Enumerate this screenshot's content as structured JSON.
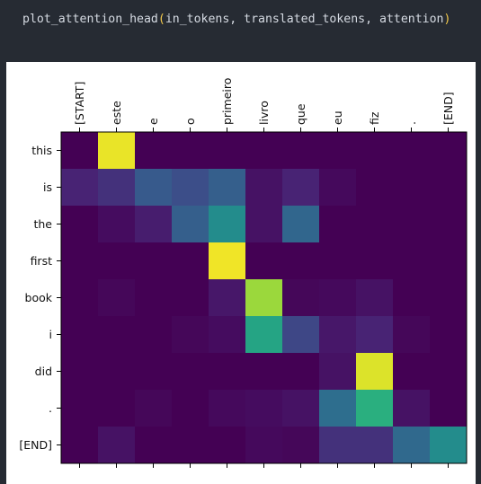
{
  "code": {
    "function_name": "plot_attention_head",
    "open_paren": "(",
    "args": "in_tokens, translated_tokens, attention",
    "close_paren": ")"
  },
  "chart_data": {
    "type": "heatmap",
    "colormap": "viridis",
    "x_labels": [
      "[START]",
      "este",
      "e",
      "o",
      "primeiro",
      "livro",
      "que",
      "eu",
      "fiz",
      ".",
      "[END]"
    ],
    "y_labels": [
      "this",
      "is",
      "the",
      "first",
      "book",
      "i",
      "did",
      ".",
      "[END]"
    ],
    "values": [
      [
        0.0,
        0.97,
        0.0,
        0.0,
        0.0,
        0.0,
        0.0,
        0.0,
        0.0,
        0.0,
        0.0
      ],
      [
        0.12,
        0.16,
        0.28,
        0.24,
        0.3,
        0.06,
        0.12,
        0.03,
        0.0,
        0.0,
        0.0
      ],
      [
        0.0,
        0.04,
        0.1,
        0.3,
        0.48,
        0.06,
        0.33,
        0.0,
        0.0,
        0.0,
        0.0
      ],
      [
        0.0,
        0.0,
        0.0,
        0.0,
        0.98,
        0.0,
        0.0,
        0.0,
        0.0,
        0.0,
        0.0
      ],
      [
        0.0,
        0.02,
        0.0,
        0.0,
        0.08,
        0.85,
        0.02,
        0.03,
        0.06,
        0.0,
        0.0
      ],
      [
        0.0,
        0.0,
        0.0,
        0.02,
        0.04,
        0.58,
        0.22,
        0.08,
        0.12,
        0.02,
        0.0
      ],
      [
        0.0,
        0.0,
        0.0,
        0.0,
        0.0,
        0.0,
        0.0,
        0.06,
        0.95,
        0.0,
        0.0
      ],
      [
        0.0,
        0.0,
        0.02,
        0.0,
        0.03,
        0.04,
        0.06,
        0.36,
        0.63,
        0.06,
        0.0
      ],
      [
        0.0,
        0.06,
        0.0,
        0.0,
        0.0,
        0.03,
        0.02,
        0.16,
        0.16,
        0.34,
        0.48
      ]
    ],
    "title": "",
    "xlabel": "",
    "ylabel": ""
  }
}
